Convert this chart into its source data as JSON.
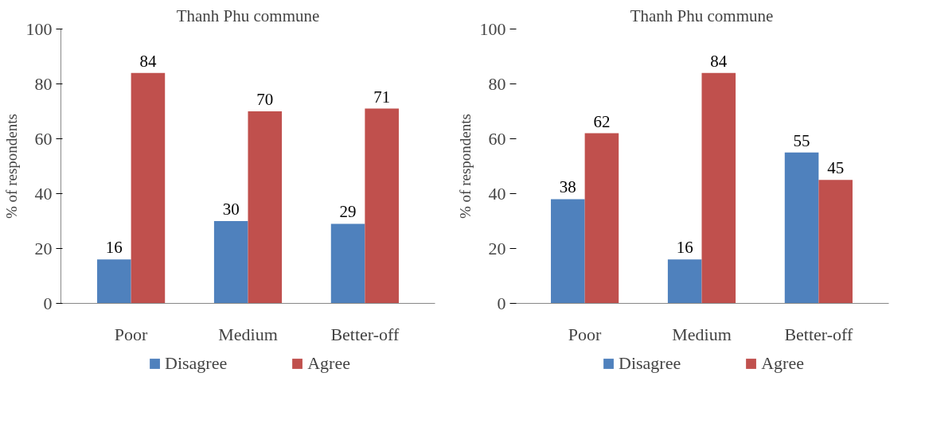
{
  "chart_data": [
    {
      "type": "bar",
      "title": "Thanh Phu commune",
      "ylabel": "% of respondents",
      "categories": [
        "Poor",
        "Medium",
        "Better-off"
      ],
      "series": [
        {
          "name": "Disagree",
          "color": "#4f81bd",
          "values": [
            16,
            30,
            29
          ]
        },
        {
          "name": "Agree",
          "color": "#c0504d",
          "values": [
            84,
            70,
            71
          ]
        }
      ],
      "ylim": [
        0,
        100
      ],
      "yticks": [
        0,
        20,
        40,
        60,
        80,
        100
      ],
      "grid": false,
      "legend": "bottom",
      "data_labels": true
    },
    {
      "type": "bar",
      "title": "Thanh Phu commune",
      "ylabel": "% of respondents",
      "categories": [
        "Poor",
        "Medium",
        "Better-off"
      ],
      "series": [
        {
          "name": "Disagree",
          "color": "#4f81bd",
          "values": [
            38,
            16,
            55
          ]
        },
        {
          "name": "Agree",
          "color": "#c0504d",
          "values": [
            62,
            84,
            45
          ]
        }
      ],
      "ylim": [
        0,
        100
      ],
      "yticks": [
        0,
        20,
        40,
        60,
        80,
        100
      ],
      "grid": false,
      "legend": "bottom",
      "data_labels": true
    }
  ]
}
